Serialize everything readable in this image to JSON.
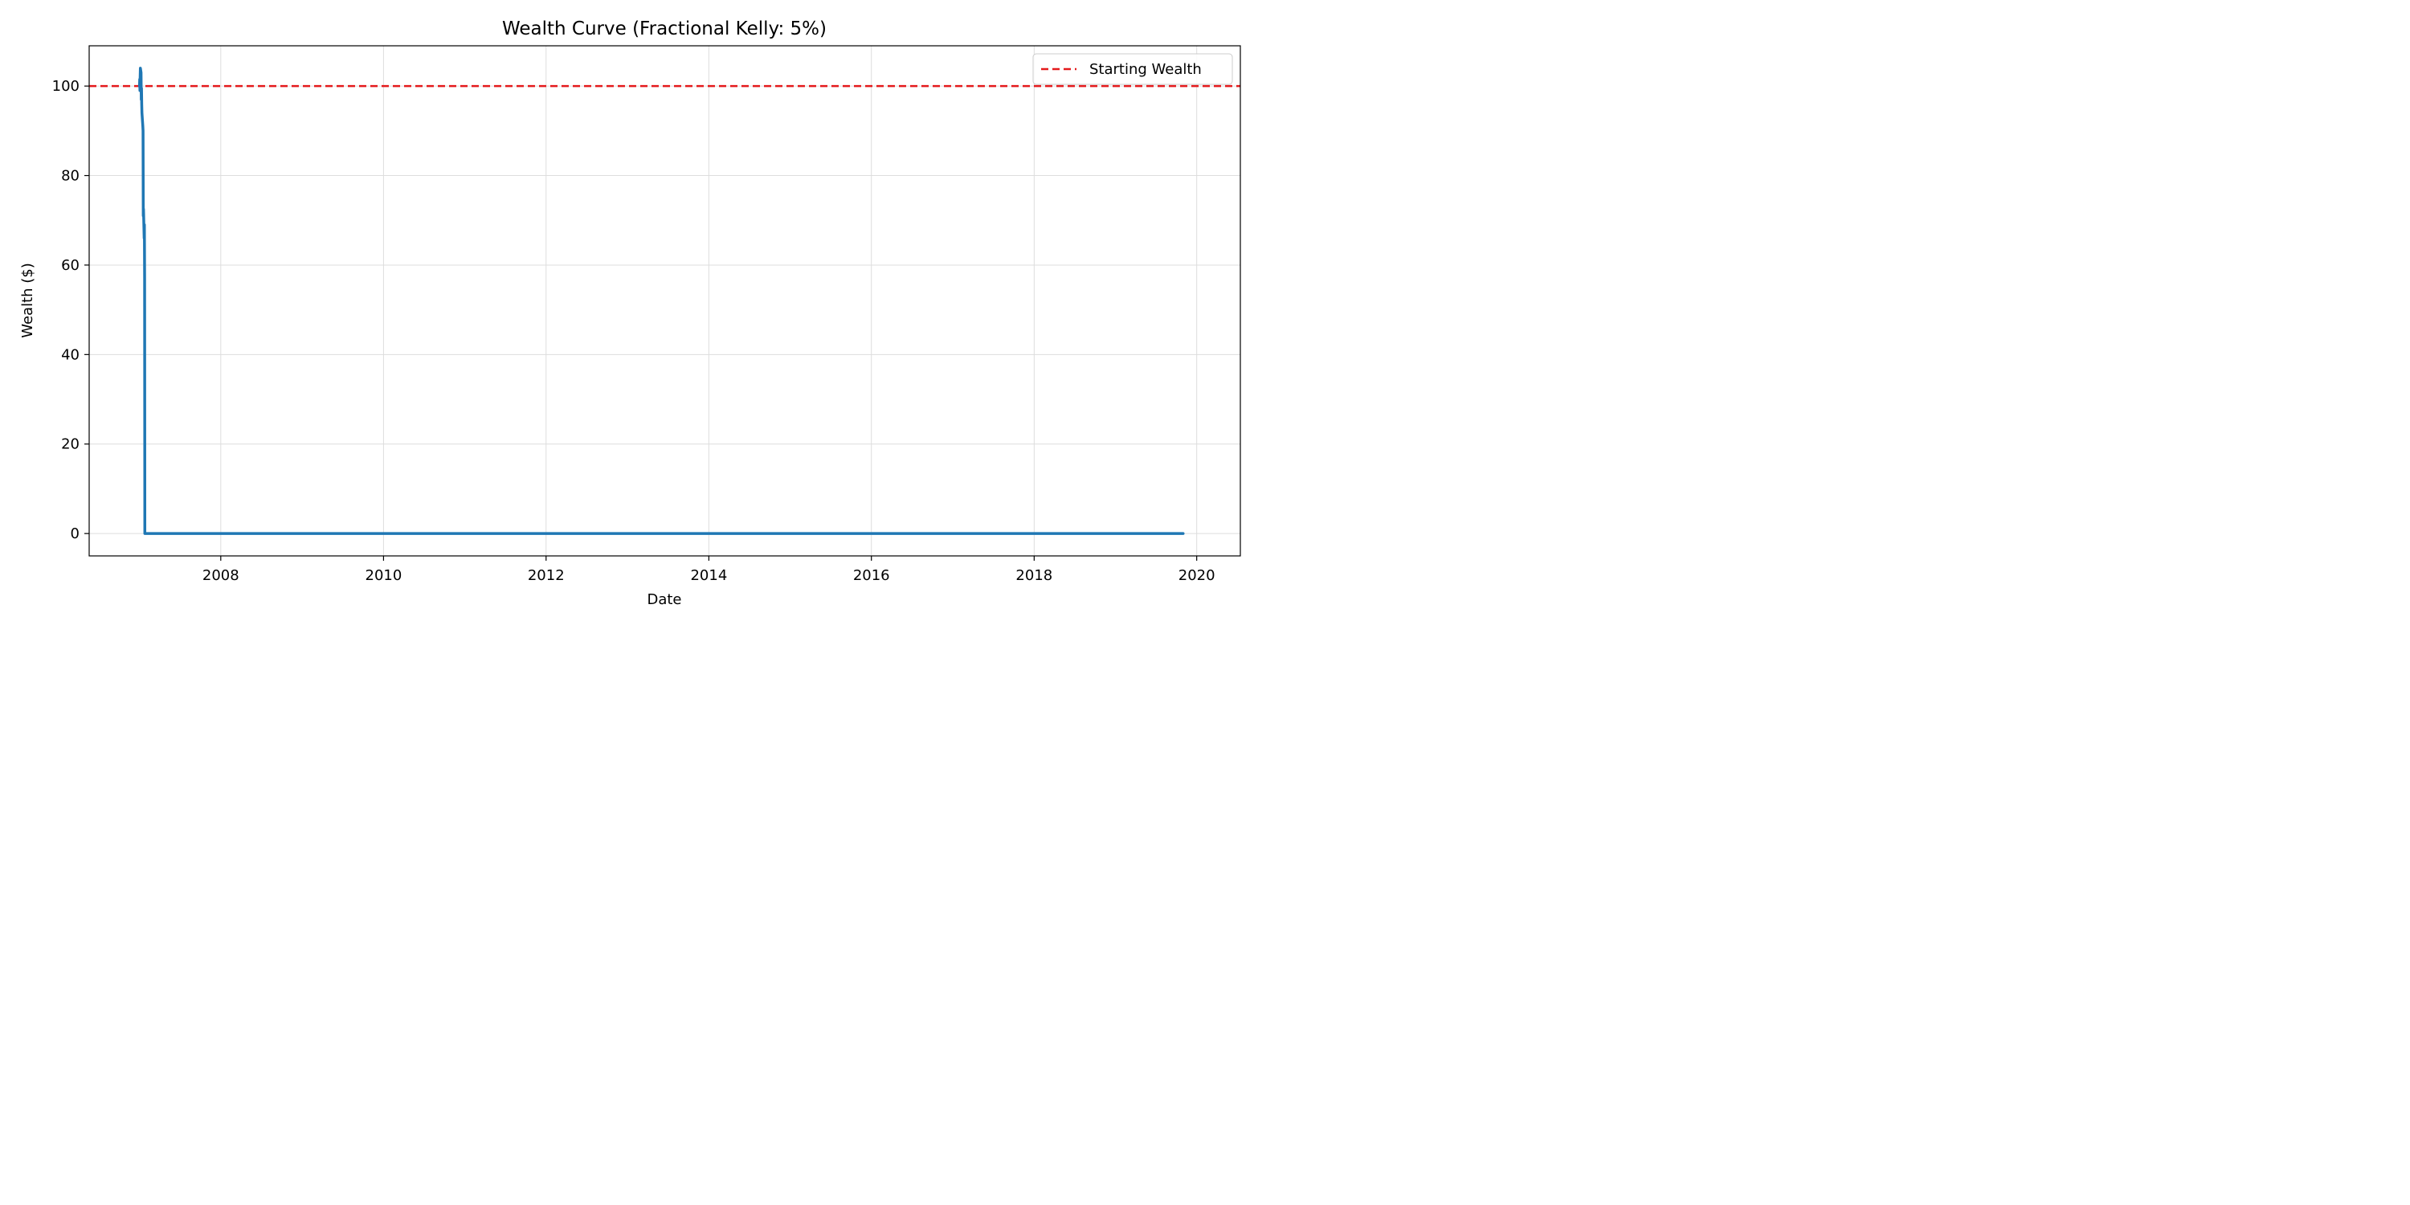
{
  "chart_data": {
    "type": "line",
    "title": "Wealth Curve (Fractional Kelly: 5%)",
    "xlabel": "Date",
    "ylabel": "Wealth ($)",
    "x_axis_kind": "date",
    "xlim": [
      "2006-05-20",
      "2020-07-15"
    ],
    "ylim": [
      -5,
      109
    ],
    "grid": true,
    "legend_placement": "top-right",
    "x_ticks": [
      "2008",
      "2010",
      "2012",
      "2014",
      "2016",
      "2018",
      "2020"
    ],
    "y_ticks": [
      0,
      20,
      40,
      60,
      80,
      100
    ],
    "reference_lines": [
      {
        "name": "Starting Wealth",
        "y": 100,
        "style": "dashed",
        "color": "#e41a1c"
      }
    ],
    "series": [
      {
        "color": "#1f77b4",
        "points": [
          {
            "x": "2007-01-01",
            "y": 100.0
          },
          {
            "x": "2007-01-02",
            "y": 101.5
          },
          {
            "x": "2007-01-03",
            "y": 99.0
          },
          {
            "x": "2007-01-04",
            "y": 102.0
          },
          {
            "x": "2007-01-05",
            "y": 104.0
          },
          {
            "x": "2007-01-08",
            "y": 103.0
          },
          {
            "x": "2007-01-09",
            "y": 97.0
          },
          {
            "x": "2007-01-10",
            "y": 99.5
          },
          {
            "x": "2007-01-11",
            "y": 96.0
          },
          {
            "x": "2007-01-12",
            "y": 94.0
          },
          {
            "x": "2007-01-16",
            "y": 91.0
          },
          {
            "x": "2007-01-17",
            "y": 90.0
          },
          {
            "x": "2007-01-18",
            "y": 71.0
          },
          {
            "x": "2007-01-19",
            "y": 72.5
          },
          {
            "x": "2007-01-22",
            "y": 66.0
          },
          {
            "x": "2007-01-23",
            "y": 69.0
          },
          {
            "x": "2007-01-24",
            "y": 57.0
          },
          {
            "x": "2007-01-25",
            "y": 0.0
          },
          {
            "x": "2019-11-01",
            "y": 0.0
          }
        ]
      }
    ]
  }
}
